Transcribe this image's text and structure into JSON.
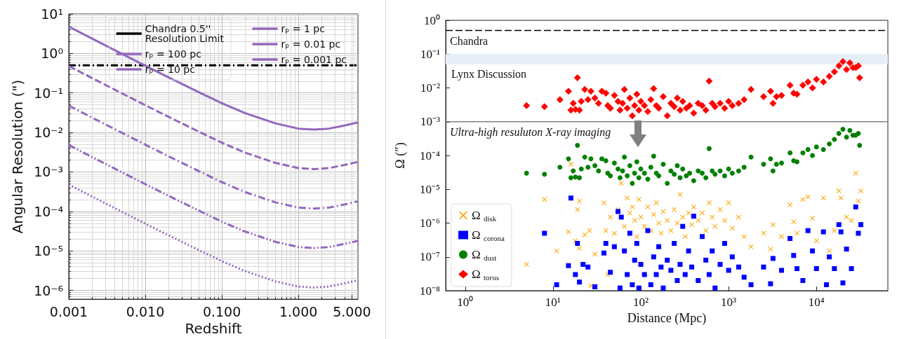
{
  "chart_data": [
    {
      "type": "line",
      "xlabel": "Redshift",
      "ylabel": "Angular Resolution (\")",
      "log": "xy",
      "grid": true,
      "legend": "top right",
      "xlim": [
        0.001,
        6
      ],
      "ylim": [
        6e-07,
        10
      ],
      "xticks": [
        {
          "value": 0.001,
          "label": "0.001"
        },
        {
          "value": 0.01,
          "label": "0.010"
        },
        {
          "value": 0.1,
          "label": "0.100"
        },
        {
          "value": 1,
          "label": "1.000"
        },
        {
          "value": 5,
          "label": "5.000"
        }
      ],
      "yticks": [
        {
          "value": 10,
          "label": "10¹"
        },
        {
          "value": 1,
          "label": "10⁰"
        },
        {
          "value": 0.1,
          "label": "10⁻¹"
        },
        {
          "value": 0.01,
          "label": "10⁻²"
        },
        {
          "value": 0.001,
          "label": "10⁻³"
        },
        {
          "value": 0.0001,
          "label": "10⁻⁴"
        },
        {
          "value": 1e-05,
          "label": "10⁻⁵"
        },
        {
          "value": 1e-06,
          "label": "10⁻⁶"
        }
      ],
      "x": [
        0.001,
        0.002,
        0.005,
        0.01,
        0.02,
        0.05,
        0.1,
        0.2,
        0.5,
        1,
        1.6,
        2.5,
        4,
        6
      ],
      "series": [
        {
          "name": "Chandra 0.5'' Resolution Limit",
          "color": "#000000",
          "line_style": "dashdot",
          "x": [
            0.001,
            6
          ],
          "values": [
            0.5,
            0.5
          ]
        },
        {
          "name": "rₚ = 100 pc",
          "color": "#9467bd",
          "line_style": "solid",
          "values": [
            4.8,
            2.4,
            0.97,
            0.49,
            0.25,
            0.105,
            0.055,
            0.031,
            0.017,
            0.0125,
            0.0118,
            0.0125,
            0.015,
            0.018
          ]
        },
        {
          "name": "rₚ = 10 pc",
          "color": "#9467bd",
          "line_style": "dashed",
          "values": [
            0.48,
            0.24,
            0.097,
            0.049,
            0.025,
            0.0105,
            0.0055,
            0.0031,
            0.0017,
            0.00125,
            0.00118,
            0.00125,
            0.0015,
            0.0018
          ]
        },
        {
          "name": "rₚ = 1 pc",
          "color": "#9467bd",
          "line_style": "dashdot",
          "values": [
            0.048,
            0.024,
            0.0097,
            0.0049,
            0.0025,
            0.00105,
            0.00055,
            0.00031,
            0.00017,
            0.000125,
            0.000118,
            0.000125,
            0.00015,
            0.00018
          ]
        },
        {
          "name": "rₚ = 0.01 pc",
          "color": "#9467bd",
          "line_style": "dashdotdot",
          "values": [
            0.0048,
            0.0024,
            0.00097,
            0.00049,
            0.00025,
            0.000105,
            5.5e-05,
            3.1e-05,
            1.7e-05,
            1.25e-05,
            1.18e-05,
            1.25e-05,
            1.5e-05,
            1.8e-05
          ]
        },
        {
          "name": "rₚ = 0.001 pc",
          "color": "#9467bd",
          "line_style": "dotted",
          "values": [
            0.00048,
            0.00024,
            9.7e-05,
            4.9e-05,
            2.5e-05,
            1.05e-05,
            5.5e-06,
            3.1e-06,
            1.7e-06,
            1.25e-06,
            1.18e-06,
            1.25e-06,
            1.5e-06,
            1.8e-06
          ]
        }
      ]
    },
    {
      "type": "scatter",
      "xlabel": "Distance (Mpc)",
      "ylabel": "Ω (″)",
      "log": "xy",
      "legend": "bottom left",
      "xlim": [
        0.6,
        65000
      ],
      "ylim": [
        1e-08,
        1
      ],
      "xticks": [
        {
          "value": 1,
          "label": "10⁰"
        },
        {
          "value": 10,
          "label": "10¹"
        },
        {
          "value": 100,
          "label": "10²"
        },
        {
          "value": 1000,
          "label": "10³"
        },
        {
          "value": 10000,
          "label": "10⁴"
        }
      ],
      "yticks": [
        {
          "value": 1,
          "label": "10⁰"
        },
        {
          "value": 0.1,
          "label": "10⁻¹"
        },
        {
          "value": 0.01,
          "label": "10⁻²"
        },
        {
          "value": 0.001,
          "label": "10⁻³"
        },
        {
          "value": 0.0001,
          "label": "10⁻⁴"
        },
        {
          "value": 1e-05,
          "label": "10⁻⁵"
        },
        {
          "value": 1e-06,
          "label": "10⁻⁶"
        },
        {
          "value": 1e-07,
          "label": "10⁻⁷"
        },
        {
          "value": 1e-08,
          "label": "10⁻⁸"
        }
      ],
      "ref_lines": [
        {
          "axis": "y",
          "value": 0.5,
          "label": "Chandra",
          "color": "#000000",
          "line_style": "dashed"
        },
        {
          "axis": "y",
          "value": 0.001,
          "label": "Ultra-high resuluton X-ray imaging",
          "color": "#808080",
          "line_style": "solid"
        }
      ],
      "bands": [
        {
          "axis": "y",
          "from": 0.05,
          "to": 0.1,
          "label": "Lynx Discussion",
          "color": "#e6eef7"
        }
      ],
      "series": [
        {
          "name": "Ω$_{disk}$",
          "color": "#ffa500",
          "marker": "cross",
          "x": [
            5,
            8,
            11,
            15,
            16,
            18,
            19,
            20,
            20,
            23,
            26,
            27,
            30,
            38,
            40,
            42,
            45,
            50,
            55,
            60,
            65,
            70,
            75,
            80,
            85,
            90,
            95,
            100,
            110,
            120,
            130,
            140,
            150,
            160,
            170,
            180,
            200,
            220,
            240,
            260,
            280,
            300,
            320,
            350,
            380,
            400,
            450,
            500,
            550,
            600,
            650,
            700,
            800,
            900,
            1000,
            1100,
            1300,
            1500,
            1800,
            2500,
            3000,
            3200,
            4000,
            5000,
            5500,
            6000,
            7000,
            8000,
            9000,
            10000,
            12000,
            14000,
            16000,
            18000,
            19000,
            22000,
            25000,
            28000,
            30000,
            32000
          ],
          "values": [
            6e-08,
            5e-06,
            1.5e-07,
            5.5e-07,
            5.5e-05,
            3e-07,
            2.5e-06,
            4.5e-06,
            1.8e-07,
            4.5e-07,
            6e-07,
            1.4e-08,
            1.2e-07,
            4e-06,
            6e-07,
            3e-08,
            1.5e-06,
            5e-07,
            2.5e-06,
            1.5e-05,
            8e-07,
            5.5e-06,
            2e-06,
            3e-06,
            1.2e-06,
            4e-07,
            5e-06,
            1.5e-06,
            8e-07,
            3e-06,
            6e-07,
            1.8e-06,
            4e-06,
            1e-06,
            5e-07,
            2.2e-06,
            1.2e-06,
            6e-07,
            2.5e-06,
            1e-06,
            7e-06,
            1.5e-06,
            4e-07,
            2e-06,
            9e-07,
            3e-06,
            1.2e-06,
            2e-06,
            6e-07,
            4e-06,
            1.5e-06,
            8e-07,
            2.5e-06,
            1.2e-06,
            4e-06,
            7e-07,
            1.5e-06,
            4e-07,
            2e-07,
            5e-07,
            1.7e-07,
            9e-07,
            4e-07,
            3.5e-06,
            1.1e-06,
            5e-07,
            5e-06,
            6e-06,
            1.4e-06,
            3e-07,
            5.5e-06,
            1.5e-07,
            6e-07,
            9e-06,
            5.5e-06,
            1.5e-06,
            1.2e-06,
            3e-05,
            4.5e-06,
            9e-06
          ]
        },
        {
          "name": "Ω$_{corona}$",
          "color": "#0000ff",
          "marker": "square",
          "x": [
            8,
            11,
            15,
            16,
            18,
            19,
            20,
            22,
            25,
            30,
            38,
            40,
            45,
            50,
            55,
            58,
            60,
            65,
            70,
            75,
            80,
            85,
            90,
            95,
            100,
            110,
            120,
            130,
            140,
            150,
            160,
            170,
            180,
            200,
            220,
            240,
            260,
            280,
            300,
            320,
            350,
            380,
            400,
            450,
            500,
            550,
            600,
            650,
            700,
            800,
            900,
            1000,
            1100,
            1300,
            1500,
            1800,
            2500,
            3000,
            3200,
            4000,
            5000,
            5500,
            6000,
            7000,
            8000,
            9000,
            10000,
            12000,
            13000,
            14000,
            16000,
            18000,
            19000,
            20000,
            22000,
            25000,
            28000,
            30000,
            32000
          ],
          "values": [
            5e-07,
            1.5e-08,
            5.5e-08,
            5.5e-06,
            3e-08,
            2.5e-07,
            1.8e-08,
            6e-08,
            5e-08,
            1.3e-08,
            1.3e-07,
            2.5e-07,
            3.5e-08,
            2e-07,
            2.2e-06,
            1.2e-08,
            1.5e-06,
            1.5e-07,
            3e-08,
            5e-07,
            1.5e-08,
            8e-08,
            2.5e-07,
            1.2e-08,
            6e-08,
            3e-08,
            6e-07,
            1.5e-08,
            1e-07,
            3e-08,
            2e-07,
            5e-08,
            1.2e-08,
            8e-08,
            4e-08,
            2.5e-07,
            2e-08,
            6e-08,
            8e-07,
            3e-08,
            1.5e-07,
            5e-08,
            1.6e-06,
            2e-08,
            4e-07,
            8e-08,
            3e-08,
            1.5e-07,
            1.2e-08,
            6e-08,
            2.5e-07,
            4e-08,
            1e-07,
            5e-08,
            2.5e-08,
            1.5e-08,
            5e-08,
            1.6e-08,
            9e-08,
            4e-08,
            3.5e-07,
            1.1e-07,
            4.5e-08,
            2e-08,
            6e-07,
            1.5e-07,
            4.5e-08,
            5.5e-07,
            1.5e-08,
            1e-07,
            4.5e-08,
            9e-07,
            5.5e-07,
            1.7e-08,
            1.7e-07,
            4.5e-08,
            3e-06,
            5e-07,
            9e-07
          ]
        },
        {
          "name": "Ω$_{dust}$",
          "color": "#008000",
          "marker": "circle",
          "x": [
            5,
            8,
            12,
            15,
            16,
            17,
            18,
            19,
            20,
            21,
            23,
            25,
            27,
            30,
            33,
            36,
            40,
            42,
            45,
            50,
            55,
            58,
            62,
            65,
            70,
            75,
            80,
            85,
            90,
            95,
            100,
            110,
            120,
            130,
            140,
            150,
            160,
            180,
            200,
            220,
            240,
            260,
            280,
            300,
            330,
            360,
            400,
            450,
            500,
            550,
            600,
            650,
            700,
            800,
            900,
            1000,
            1100,
            1300,
            1500,
            1800,
            2500,
            3000,
            3200,
            3500,
            4000,
            5000,
            5500,
            6000,
            7000,
            8000,
            9000,
            10000,
            12000,
            14000,
            16000,
            18000,
            20000,
            22000,
            24000,
            26000,
            28000,
            30000,
            31000
          ],
          "values": [
            3e-05,
            2.8e-05,
            4.5e-05,
            8e-05,
            2.2e-05,
            3.5e-05,
            2.3e-05,
            0.0002,
            2.2e-05,
            4e-05,
            9e-05,
            4.5e-05,
            8e-05,
            5e-05,
            3.5e-05,
            8e-05,
            7e-05,
            3e-05,
            2.5e-05,
            6e-05,
            4e-05,
            2.2e-05,
            3.5e-05,
            9e-05,
            2.5e-05,
            5e-05,
            1.5e-05,
            3e-05,
            6.5e-05,
            2.2e-05,
            4e-05,
            3e-05,
            2e-05,
            4.5e-05,
            9.5e-05,
            3e-05,
            2.5e-05,
            5.5e-05,
            1.5e-05,
            3.5e-05,
            2.8e-05,
            5e-05,
            2.2e-05,
            4e-05,
            2.5e-05,
            3e-05,
            1.8e-05,
            3.5e-05,
            3e-05,
            2.2e-05,
            0.00016,
            3.5e-05,
            2.8e-05,
            3.5e-05,
            2.5e-05,
            4e-05,
            3e-05,
            3.5e-05,
            4.5e-05,
            9e-05,
            5.5e-05,
            8e-05,
            3.5e-05,
            5.5e-05,
            6e-05,
            0.00012,
            7e-05,
            6.5e-05,
            0.00012,
            0.00015,
            0.0001,
            0.00018,
            0.00015,
            0.00022,
            0.0003,
            0.00045,
            0.0006,
            0.00035,
            0.00055,
            0.0004,
            0.0004,
            0.00045,
            0.0002
          ]
        },
        {
          "name": "Ω$_{torus}$",
          "color": "#ff0000",
          "marker": "diamond",
          "x": [
            5,
            8,
            12,
            15,
            16,
            17,
            18,
            19,
            20,
            21,
            23,
            25,
            27,
            30,
            33,
            36,
            40,
            42,
            45,
            50,
            55,
            58,
            62,
            65,
            70,
            75,
            80,
            85,
            90,
            95,
            100,
            110,
            120,
            130,
            140,
            150,
            160,
            180,
            200,
            220,
            240,
            260,
            280,
            300,
            330,
            360,
            400,
            450,
            500,
            550,
            600,
            650,
            700,
            800,
            900,
            1000,
            1100,
            1300,
            1500,
            1800,
            2500,
            3000,
            3200,
            3500,
            4000,
            5000,
            5500,
            6000,
            7000,
            8000,
            9000,
            10000,
            12000,
            14000,
            16000,
            18000,
            20000,
            22000,
            24000,
            26000,
            28000,
            30000,
            31000
          ],
          "values": [
            0.003,
            0.0028,
            0.0045,
            0.008,
            0.0022,
            0.0035,
            0.0023,
            0.02,
            0.0022,
            0.004,
            0.009,
            0.0045,
            0.008,
            0.005,
            0.0035,
            0.008,
            0.007,
            0.003,
            0.0025,
            0.006,
            0.004,
            0.0022,
            0.0035,
            0.009,
            0.0025,
            0.005,
            0.0015,
            0.003,
            0.0065,
            0.0022,
            0.004,
            0.003,
            0.002,
            0.0045,
            0.0095,
            0.003,
            0.0025,
            0.0055,
            0.0015,
            0.0035,
            0.0028,
            0.005,
            0.0022,
            0.004,
            0.0025,
            0.003,
            0.0018,
            0.0035,
            0.003,
            0.0022,
            0.016,
            0.0035,
            0.0028,
            0.0035,
            0.0025,
            0.004,
            0.003,
            0.0035,
            0.0045,
            0.009,
            0.0055,
            0.008,
            0.0035,
            0.0055,
            0.006,
            0.012,
            0.007,
            0.0065,
            0.012,
            0.015,
            0.01,
            0.018,
            0.015,
            0.022,
            0.03,
            0.045,
            0.06,
            0.035,
            0.055,
            0.04,
            0.04,
            0.045,
            0.02
          ]
        }
      ]
    }
  ]
}
